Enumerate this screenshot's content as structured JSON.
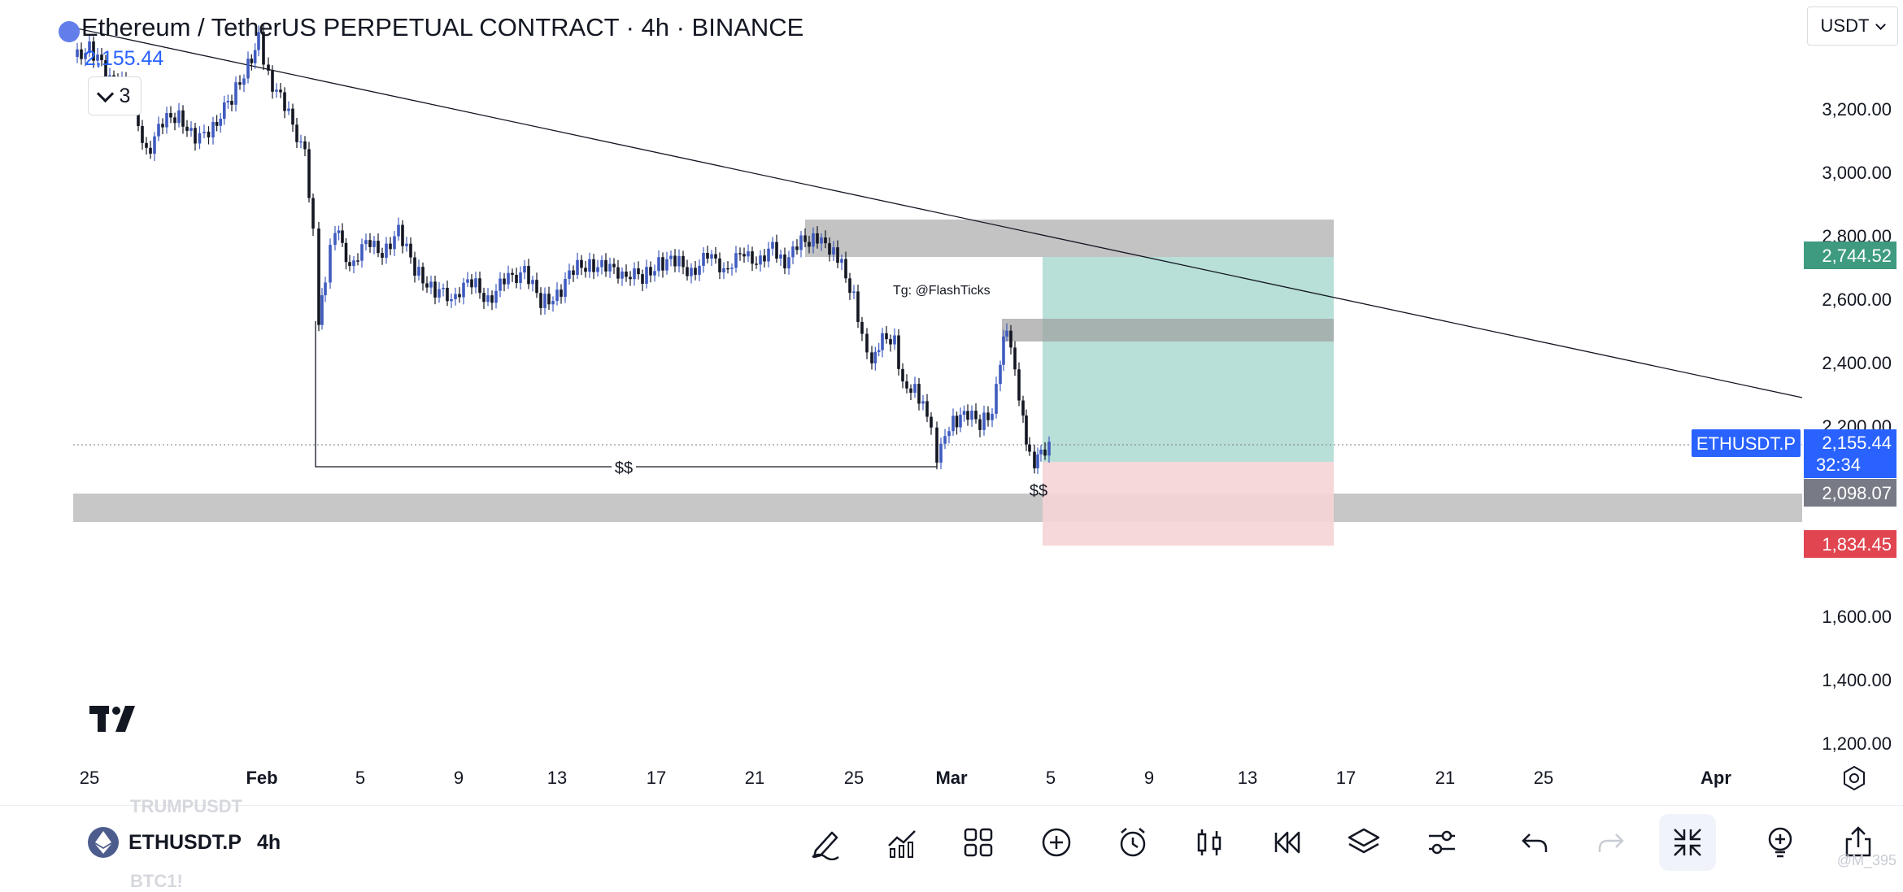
{
  "header": {
    "title": "Ethereum / TetherUS PERPETUAL CONTRACT · 4h · BINANCE",
    "last_price": "2,155.44",
    "indicator_count": "3"
  },
  "currency_selector": {
    "value": "USDT"
  },
  "chart": {
    "annotation_text": "Tg: @FlashTicks",
    "liquidity_label_1": "$$",
    "liquidity_label_2": "$$",
    "y_ticks": [
      "3,200.00",
      "3,000.00",
      "2,800.00",
      "2,600.00",
      "2,400.00",
      "2,200.00",
      "1,600.00",
      "1,400.00",
      "1,200.00"
    ],
    "x_ticks": [
      "25",
      "Feb",
      "5",
      "9",
      "13",
      "17",
      "21",
      "25",
      "Mar",
      "5",
      "9",
      "13",
      "17",
      "21",
      "25",
      "Apr"
    ],
    "price_labels": {
      "target": "2,744.52",
      "symbol_tag": "ETHUSDT.P",
      "current": "2,155.44",
      "countdown": "32:34",
      "entry": "2,098.07",
      "stop": "1,834.45"
    },
    "colors": {
      "candle_up": "#3f5bbf",
      "candle_down": "#131722",
      "target_zone": "#b4ddd6",
      "stop_zone": "#f5d3d6",
      "supply_zone": "#bdbdbd",
      "target_label": "#3e9b80",
      "stop_label": "#e04550",
      "current_label": "#2962ff",
      "entry_label": "#787b86"
    }
  },
  "bottom_bar": {
    "symbol": "ETHUSDT.P",
    "timeframe": "4h",
    "ghost_above": "TRUMPUSDT",
    "ghost_below": "BTC1!",
    "tools": [
      "draw-icon",
      "indicators-icon",
      "layout-icon",
      "add-icon",
      "alert-icon",
      "candle-type-icon",
      "replay-icon",
      "layers-icon",
      "settings-icon",
      "undo-icon",
      "redo-icon",
      "fullscreen-exit-icon",
      "ideas-icon",
      "share-icon"
    ]
  },
  "watermark": "@M_395"
}
